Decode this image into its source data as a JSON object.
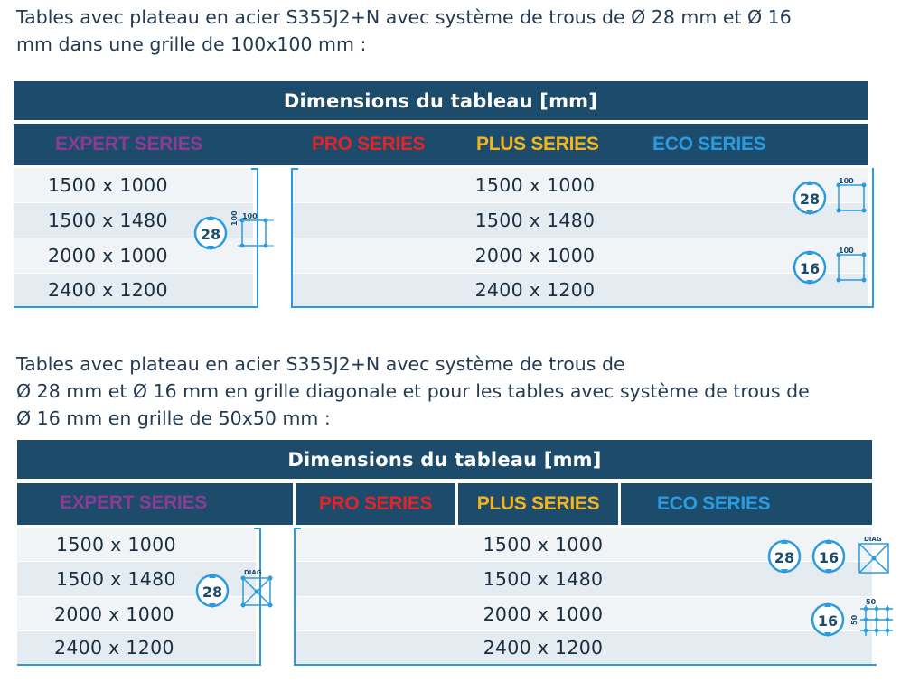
{
  "section1": {
    "intro_lines": [
      "Tables avec plateau en acier S355J2+N avec système de trous de Ø 28 mm et Ø 16",
      "mm dans une grille de 100x100 mm :"
    ],
    "header": "Dimensions du tableau [mm]",
    "series": {
      "expert": "EXPERT SERIES",
      "pro": "PRO SERIES",
      "plus": "PLUS SERIES",
      "eco": "ECO SERIES"
    },
    "left_rows": [
      "1500 x 1000",
      "1500 x 1480",
      "2000 x 1000",
      "2400 x 1200"
    ],
    "right_rows": [
      "1500 x 1000",
      "1500 x 1480",
      "2000 x 1000",
      "2400 x 1200"
    ],
    "icons": {
      "hole28": "28",
      "hole16": "16",
      "grid": "100"
    }
  },
  "section2": {
    "intro_lines": [
      "Tables avec plateau en acier S355J2+N avec système de trous de",
      "Ø 28 mm et Ø 16 mm en grille diagonale et pour les tables avec système de trous de",
      "Ø 16 mm en grille de 50x50 mm :"
    ],
    "header": "Dimensions du tableau [mm]",
    "series": {
      "expert": "EXPERT SERIES",
      "pro": "PRO SERIES",
      "plus": "PLUS SERIES",
      "eco": "ECO SERIES"
    },
    "left_rows": [
      "1500 x 1000",
      "1500 x 1480",
      "2000 x 1000",
      "2400 x 1200"
    ],
    "right_rows": [
      "1500 x 1000",
      "1500 x 1480",
      "2000 x 1000",
      "2400 x 1200"
    ],
    "icons": {
      "hole28": "28",
      "hole16": "16",
      "diag": "DIAG",
      "grid50": "50"
    }
  },
  "colors": {
    "header_bg": "#1d4b6b",
    "expert": "#8c3a93",
    "pro": "#e22429",
    "plus": "#f2b51c",
    "eco": "#2b9be0",
    "row_light": "#f0f4f7",
    "row_dark": "#e4ebf1"
  }
}
